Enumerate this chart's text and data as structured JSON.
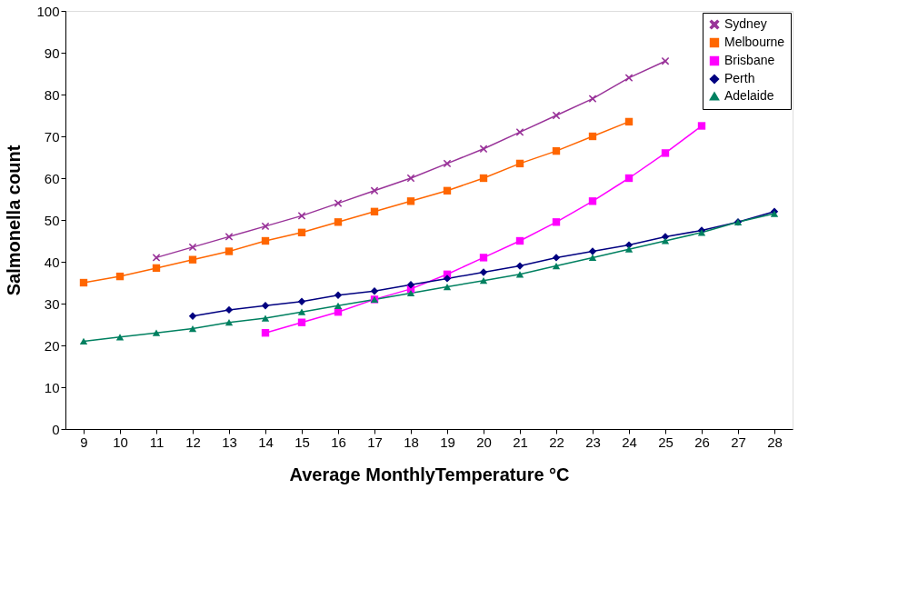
{
  "chart_data": {
    "type": "line",
    "xlabel": "Average MonthlyTemperature °C",
    "ylabel": "Salmonella count",
    "categories": [
      "9",
      "10",
      "11",
      "12",
      "13",
      "14",
      "15",
      "16",
      "17",
      "18",
      "19",
      "20",
      "21",
      "22",
      "23",
      "24",
      "25",
      "26",
      "27",
      "28"
    ],
    "series": [
      {
        "name": "Sydney",
        "color": "#993399",
        "marker": "cross",
        "values": [
          null,
          null,
          41,
          43.5,
          46,
          48.5,
          51,
          54,
          57,
          60,
          63.5,
          67,
          71,
          75,
          79,
          84,
          88,
          null,
          null,
          null
        ]
      },
      {
        "name": "Melbourne",
        "color": "#ff6600",
        "marker": "square",
        "values": [
          35,
          36.5,
          38.5,
          40.5,
          42.5,
          45,
          47,
          49.5,
          52,
          54.5,
          57,
          60,
          63.5,
          66.5,
          70,
          73.5,
          null,
          null,
          null,
          null
        ]
      },
      {
        "name": "Brisbane",
        "color": "#ff00ff",
        "marker": "square",
        "values": [
          null,
          null,
          null,
          null,
          null,
          23,
          25.5,
          28,
          31,
          33.5,
          37,
          41,
          45,
          49.5,
          54.5,
          60,
          66,
          72.5,
          null,
          null
        ]
      },
      {
        "name": "Perth",
        "color": "#000080",
        "marker": "diamond",
        "values": [
          null,
          null,
          null,
          27,
          28.5,
          29.5,
          30.5,
          32,
          33,
          34.5,
          36,
          37.5,
          39,
          41,
          42.5,
          44,
          46,
          47.5,
          49.5,
          52
        ]
      },
      {
        "name": "Adelaide",
        "color": "#008060",
        "marker": "triangle",
        "values": [
          21,
          22,
          23,
          24,
          25.5,
          26.5,
          28,
          29.5,
          31,
          32.5,
          34,
          35.5,
          37,
          39,
          41,
          43,
          45,
          47,
          49.5,
          51.5
        ]
      }
    ],
    "ylim": [
      0,
      100
    ],
    "yticks": [
      0,
      10,
      20,
      30,
      40,
      50,
      60,
      70,
      80,
      90,
      100
    ],
    "grid": false,
    "legend": "top right",
    "line_style": "solid"
  }
}
